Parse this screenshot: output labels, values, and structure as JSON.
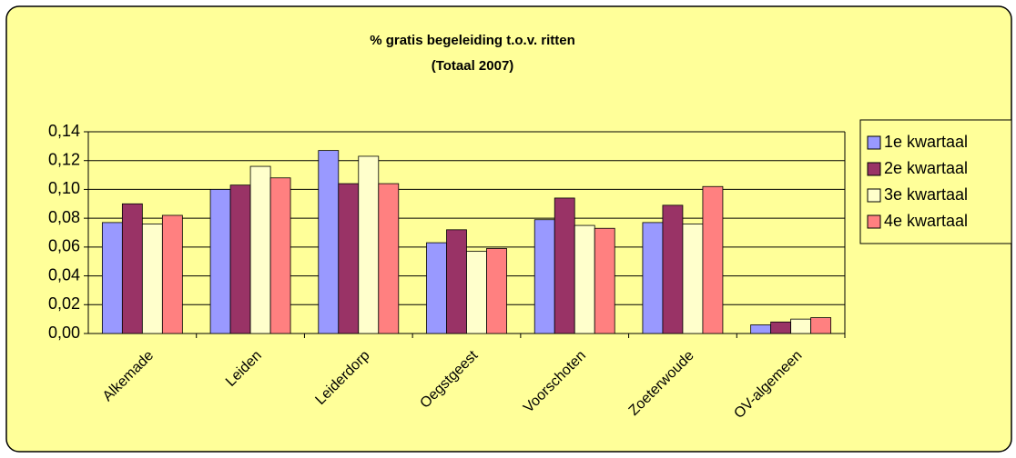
{
  "chart_data": {
    "type": "bar",
    "title": "% gratis begeleiding t.o.v. ritten",
    "subtitle": "(Totaal 2007)",
    "categories": [
      "Alkemade",
      "Leiden",
      "Leiderdorp",
      "Oegstgeest",
      "Voorschoten",
      "Zoeterwoude",
      "OV-algemeen"
    ],
    "series": [
      {
        "name": "1e kwartaal",
        "color": "#9999ff",
        "values": [
          0.077,
          0.1,
          0.127,
          0.063,
          0.079,
          0.077,
          0.006
        ]
      },
      {
        "name": "2e kwartaal",
        "color": "#993366",
        "values": [
          0.09,
          0.103,
          0.104,
          0.072,
          0.094,
          0.089,
          0.008
        ]
      },
      {
        "name": "3e kwartaal",
        "color": "#ffffcc",
        "values": [
          0.076,
          0.116,
          0.123,
          0.057,
          0.075,
          0.076,
          0.01
        ]
      },
      {
        "name": "4e kwartaal",
        "color": "#ff8080",
        "values": [
          0.082,
          0.108,
          0.104,
          0.059,
          0.073,
          0.102,
          0.011
        ]
      }
    ],
    "ylim": [
      0,
      0.14
    ],
    "yticks": [
      {
        "value": 0,
        "label": "0,00"
      },
      {
        "value": 0.02,
        "label": "0,02"
      },
      {
        "value": 0.04,
        "label": "0,04"
      },
      {
        "value": 0.06,
        "label": "0,06"
      },
      {
        "value": 0.08,
        "label": "0,08"
      },
      {
        "value": 0.1,
        "label": "0,10"
      },
      {
        "value": 0.12,
        "label": "0,12"
      },
      {
        "value": 0.14,
        "label": "0,14"
      }
    ],
    "grid": true,
    "legend": "right"
  }
}
